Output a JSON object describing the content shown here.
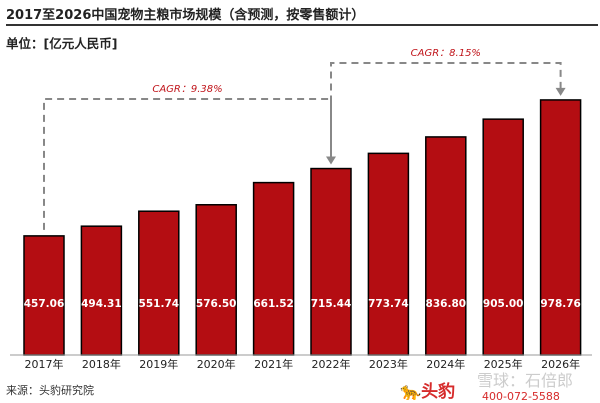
{
  "title": "2017至2026中国宠物主粮市场规模（含预测，按零售额计）",
  "unit": "单位：[亿元人民币]",
  "source": "来源：头豹研究院",
  "watermark": "雪球：石倍郎",
  "logo": "头豹",
  "phone": "400-072-5588",
  "chart_data": {
    "type": "bar",
    "categories": [
      "2017年",
      "2018年",
      "2019年",
      "2020年",
      "2021年",
      "2022年",
      "2023年",
      "2024年",
      "2025年",
      "2026年"
    ],
    "values": [
      457.06,
      494.31,
      551.74,
      576.5,
      661.52,
      715.44,
      773.74,
      836.8,
      905.0,
      978.76
    ],
    "value_labels": [
      "457.06",
      "494.31",
      "551.74",
      "576.50",
      "661.52",
      "715.44",
      "773.74",
      "836.80",
      "905.00",
      "978.76"
    ],
    "ylim": [
      0,
      1000
    ],
    "bar_color": "#b40d12",
    "annotations": [
      {
        "text": "CAGR：9.38%",
        "from": "2017年",
        "to": "2022年"
      },
      {
        "text": "CAGR：8.15%",
        "from": "2022年",
        "to": "2026年"
      }
    ],
    "annotation_color": "#c0141a"
  }
}
